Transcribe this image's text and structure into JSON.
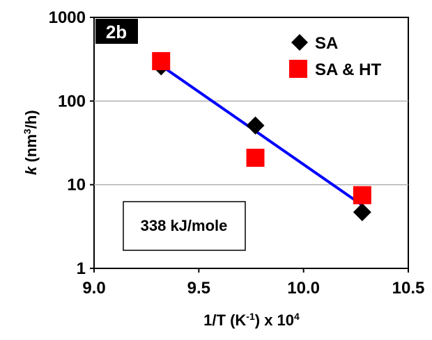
{
  "chart_data": {
    "type": "scatter",
    "panel_label": "2b",
    "xlabel": {
      "main": "1/T (K",
      "sup1": "-1",
      "mid": ") x 10",
      "sup2": "4"
    },
    "ylabel": {
      "italic": "k",
      "main": " (nm",
      "sup": "3",
      "end": "/h)"
    },
    "xlim": [
      9.0,
      10.5
    ],
    "ylim": [
      1,
      1000
    ],
    "yscale": "log",
    "xticks": [
      "9.0",
      "9.5",
      "10.0",
      "10.5"
    ],
    "yticks": [
      "1",
      "10",
      "100",
      "1000"
    ],
    "grid": "horizontal",
    "legend_position": "top-right",
    "series": [
      {
        "name": "SA",
        "marker": "diamond",
        "color": "#000000",
        "x": [
          9.32,
          9.77,
          10.28
        ],
        "y": [
          260,
          51,
          4.7
        ]
      },
      {
        "name": "SA & HT",
        "marker": "square",
        "color": "#ff0000",
        "x": [
          9.32,
          9.77,
          10.28
        ],
        "y": [
          300,
          21,
          7.5
        ]
      }
    ],
    "fit_line": {
      "color": "#0000ff",
      "x": [
        9.32,
        10.28
      ],
      "y": [
        265,
        5.7
      ]
    },
    "annotation": "338 kJ/mole"
  }
}
